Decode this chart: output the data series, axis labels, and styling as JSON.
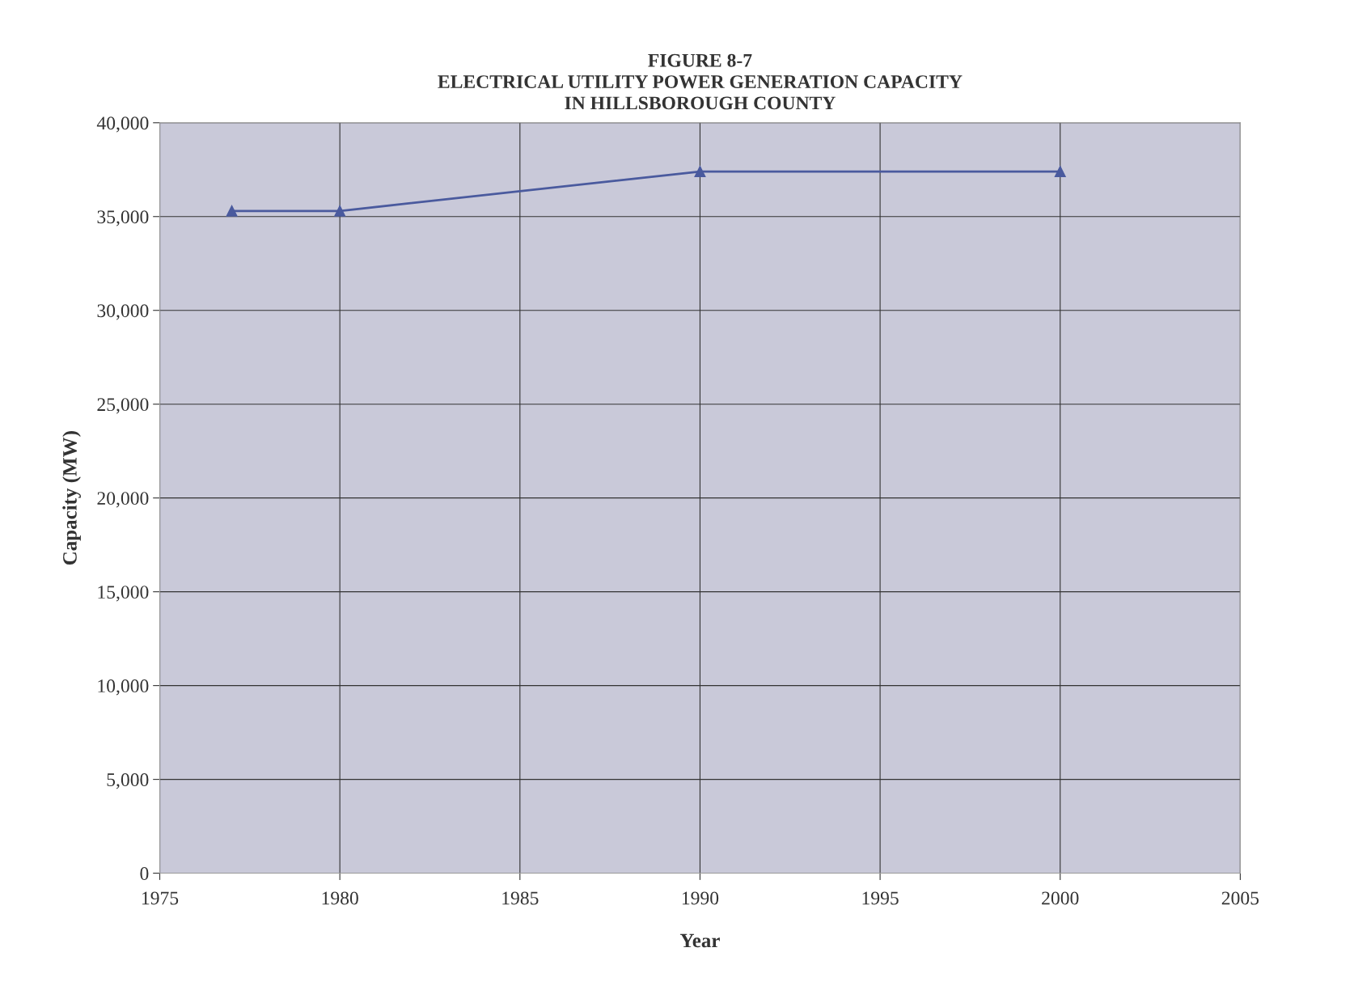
{
  "chart_data": {
    "type": "line",
    "title": "FIGURE 8-7\nELECTRICAL UTILITY POWER GENERATION CAPACITY\nIN HILLSBOROUGH COUNTY",
    "xlabel": "Year",
    "ylabel": "Capacity (MW)",
    "x": [
      1977,
      1980,
      1990,
      2000
    ],
    "series": [
      {
        "color": "#4a5a9e",
        "values": [
          35300,
          35300,
          37400,
          37400
        ]
      }
    ],
    "xlim": [
      1975,
      2005
    ],
    "xticks": [
      1975,
      1980,
      1985,
      1990,
      1995,
      2000,
      2005
    ],
    "ylim": [
      0,
      40000
    ],
    "yticks": [
      {
        "value": 0,
        "label": "0"
      },
      {
        "value": 5000,
        "label": "5,000"
      },
      {
        "value": 10000,
        "label": "10,000"
      },
      {
        "value": 15000,
        "label": "15,000"
      },
      {
        "value": 20000,
        "label": "20,000"
      },
      {
        "value": 25000,
        "label": "25,000"
      },
      {
        "value": 30000,
        "label": "30,000"
      },
      {
        "value": 35000,
        "label": "35,000"
      },
      {
        "value": 40000,
        "label": "40,000"
      }
    ],
    "grid": true,
    "marker": "triangle",
    "line_style": "solid"
  }
}
